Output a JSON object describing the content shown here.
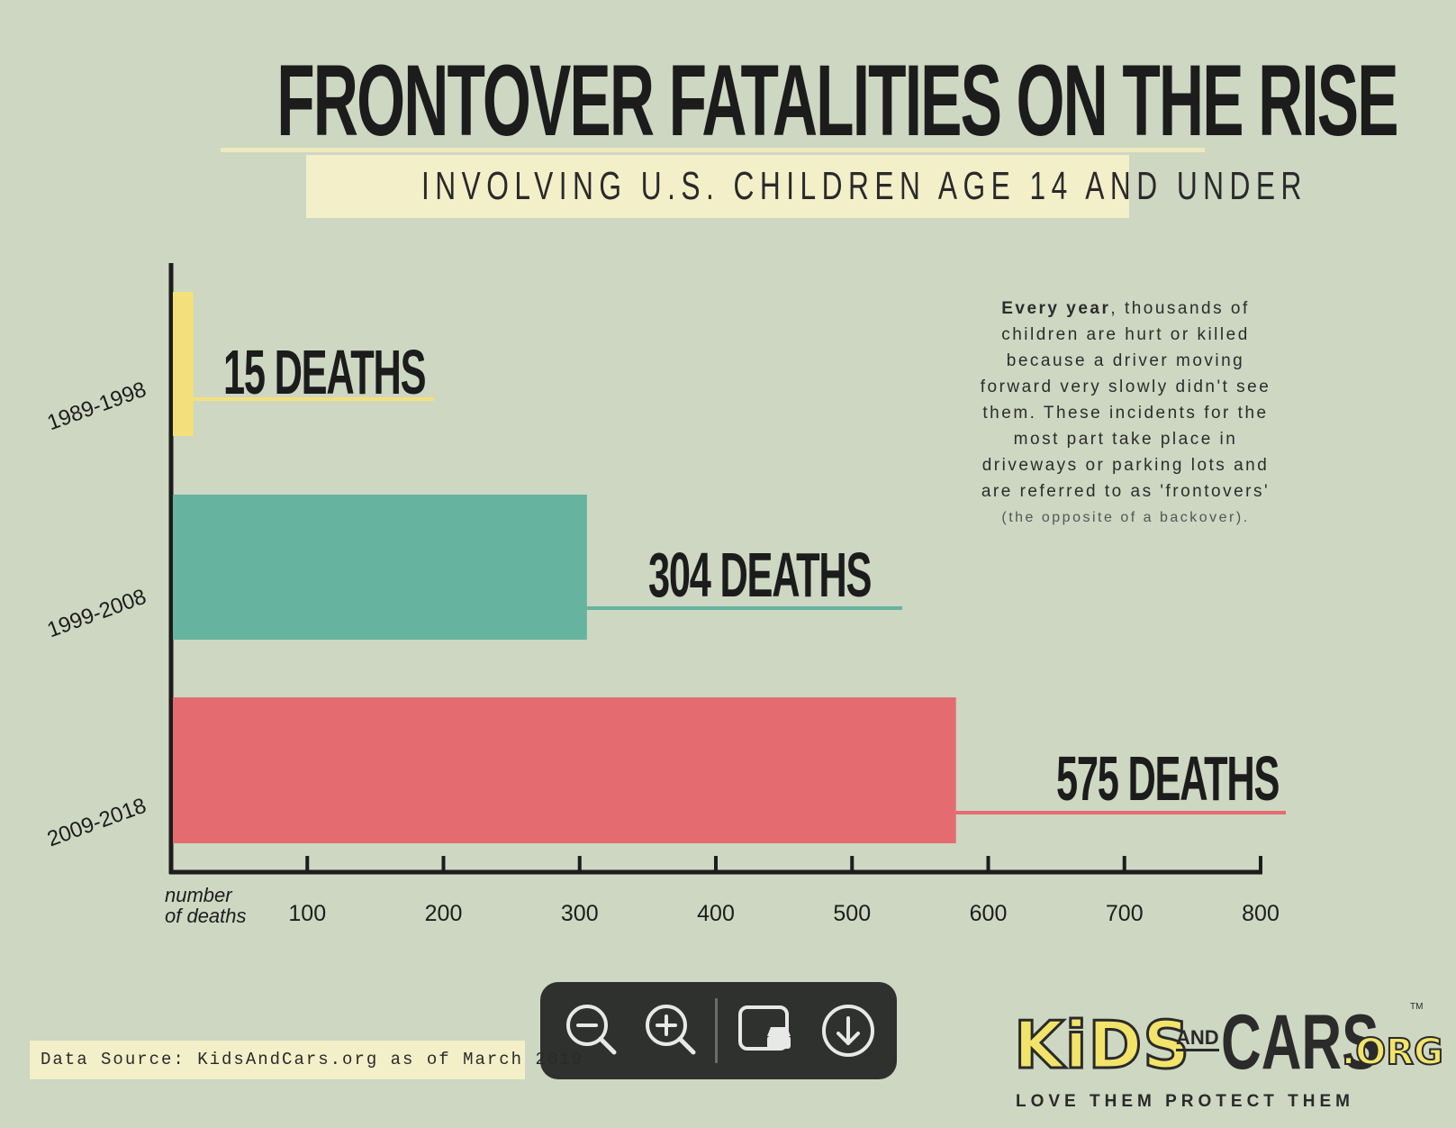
{
  "header": {
    "title": "FRONTOVER FATALITIES ON THE RISE",
    "subtitle": "INVOLVING U.S. CHILDREN AGE 14 AND UNDER"
  },
  "blurb": {
    "lead": "Every year",
    "line1_rest": ", thousands of",
    "line2": "children are hurt or killed",
    "line3": "because a driver moving",
    "line4": "forward very slowly didn't see",
    "line5": "them. These incidents for the",
    "line6": "most part take place in",
    "line7": "driveways or parking lots and",
    "line8": "are referred to as 'frontovers'",
    "line9": "(the opposite of a backover)."
  },
  "source": "Data Source: KidsAndCars.org as of March 2019",
  "toolbar": {
    "zoom_out_icon": "zoom-out-icon",
    "zoom_in_icon": "zoom-in-icon",
    "crop_icon": "crop-icon",
    "download_icon": "download-icon"
  },
  "logo": {
    "kids": "KiDS",
    "and": "AND",
    "cars": "CARS",
    "org": ".ORG",
    "tm": "TM",
    "tagline": "LOVE THEM   PROTECT THEM"
  },
  "colors": {
    "background": "#cdd7c2",
    "bar_1989": "#f4e07a",
    "bar_1999": "#66b39f",
    "bar_2009": "#e46c70",
    "axis": "#1d1d1d"
  },
  "chart_data": {
    "type": "bar",
    "orientation": "horizontal",
    "categories": [
      "1989-1998",
      "1999-2008",
      "2009-2018"
    ],
    "values": [
      15,
      304,
      575
    ],
    "value_labels": [
      "15 DEATHS",
      "304 DEATHS",
      "575 DEATHS"
    ],
    "xlabel": "number of deaths",
    "xlabel_lines": [
      "number",
      "of deaths"
    ],
    "xticks": [
      100,
      200,
      300,
      400,
      500,
      600,
      700,
      800
    ],
    "xlim": [
      0,
      800
    ],
    "grid": false,
    "legend": "none"
  }
}
